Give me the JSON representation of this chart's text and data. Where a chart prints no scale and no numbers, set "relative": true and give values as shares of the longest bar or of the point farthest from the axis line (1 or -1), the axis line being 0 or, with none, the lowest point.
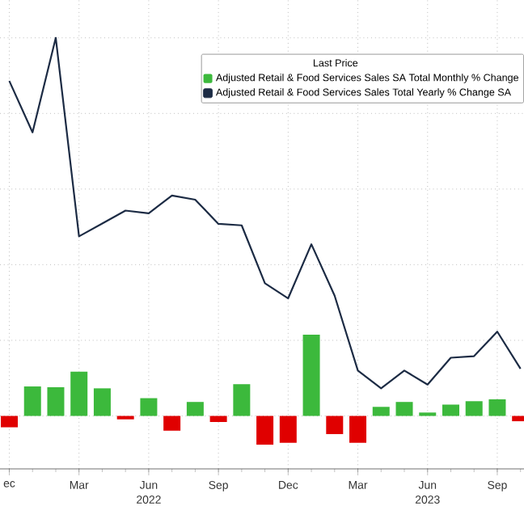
{
  "chart_data": {
    "type": "bar",
    "relative": true,
    "legend_title": "Last Price",
    "legend": "top right",
    "grid": true,
    "categories": [
      "ec",
      null,
      null,
      "Mar",
      null,
      null,
      "Jun",
      null,
      null,
      "Sep",
      null,
      null,
      "Dec",
      null,
      null,
      "Mar",
      null,
      null,
      "Jun",
      null,
      null,
      "Sep",
      null
    ],
    "series": [
      {
        "name": "Adjusted Retail & Food Services Sales SA Total Monthly % Change",
        "color": "#3cb93c",
        "colors": [
          "#e00000",
          "#3cb93c",
          "#3cb93c",
          "#3cb93c",
          "#3cb93c",
          "#e00000",
          "#3cb93c",
          "#e00000",
          "#3cb93c",
          "#e00000",
          "#3cb93c",
          "#e00000",
          "#e00000",
          "#3cb93c",
          "#e00000",
          "#e00000",
          "#3cb93c",
          "#3cb93c",
          "#3cb93c",
          "#3cb93c",
          "#3cb93c",
          "#3cb93c",
          "#e00000"
        ],
        "values": [
          -0.03,
          0.078,
          0.076,
          0.117,
          0.073,
          -0.009,
          0.047,
          -0.039,
          0.037,
          -0.016,
          0.084,
          -0.076,
          -0.071,
          0.215,
          -0.048,
          -0.071,
          0.024,
          0.037,
          0.009,
          0.03,
          0.039,
          0.044,
          -0.014
        ]
      },
      {
        "name": "Adjusted Retail & Food Services Sales Total Yearly % Change SA",
        "type": "line",
        "color": "#1c2b44",
        "values": [
          0.886,
          0.75,
          1,
          0.475,
          0.509,
          0.543,
          0.536,
          0.583,
          0.572,
          0.508,
          0.504,
          0.351,
          0.311,
          0.454,
          0.318,
          0.12,
          0.073,
          0.12,
          0.083,
          0.154,
          0.158,
          0.223,
          0.125
        ]
      }
    ],
    "annotations": [
      "2022",
      "2023"
    ]
  }
}
